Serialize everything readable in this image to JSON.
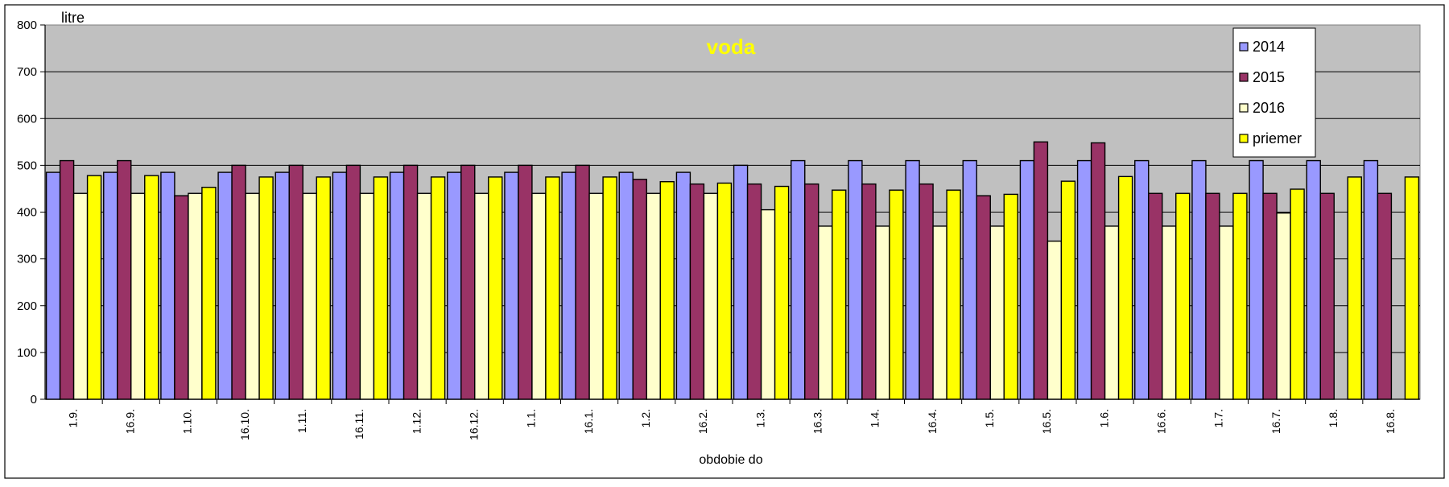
{
  "chart_data": {
    "type": "bar",
    "title": "voda",
    "ylabel": "litre",
    "xlabel": "obdobie do",
    "ylim": [
      0,
      800
    ],
    "yticks": [
      0,
      100,
      200,
      300,
      400,
      500,
      600,
      700,
      800
    ],
    "grid": true,
    "legend_position": "top-right",
    "categories": [
      "1.9.",
      "16.9.",
      "1.10.",
      "16.10.",
      "1.11.",
      "16.11.",
      "1.12.",
      "16.12.",
      "1.1.",
      "16.1.",
      "1.2.",
      "16.2.",
      "1.3.",
      "16.3.",
      "1.4.",
      "16.4.",
      "1.5.",
      "16.5.",
      "1.6.",
      "16.6.",
      "1.7.",
      "16.7.",
      "1.8.",
      "16.8."
    ],
    "series": [
      {
        "name": "2014",
        "color": "#9999ff",
        "values": [
          485,
          485,
          485,
          485,
          485,
          485,
          485,
          485,
          485,
          485,
          485,
          485,
          500,
          510,
          510,
          510,
          510,
          510,
          510,
          510,
          510,
          510,
          510,
          510
        ]
      },
      {
        "name": "2015",
        "color": "#993366",
        "values": [
          510,
          510,
          435,
          500,
          500,
          500,
          500,
          500,
          500,
          500,
          470,
          460,
          460,
          460,
          460,
          460,
          435,
          550,
          548,
          440,
          440,
          440,
          440,
          440
        ]
      },
      {
        "name": "2016",
        "color": "#ffffcc",
        "values": [
          440,
          440,
          440,
          440,
          440,
          440,
          440,
          440,
          440,
          440,
          440,
          440,
          405,
          370,
          370,
          370,
          370,
          338,
          370,
          370,
          370,
          398,
          null,
          null
        ]
      },
      {
        "name": "priemer",
        "color": "#ffff00",
        "values": [
          478,
          478,
          453,
          475,
          475,
          475,
          475,
          475,
          475,
          475,
          465,
          462,
          455,
          447,
          447,
          447,
          438,
          466,
          476,
          440,
          440,
          449,
          475,
          475
        ]
      }
    ],
    "colors": {
      "plot_bg": "#c0c0c0",
      "title": "#ffff00",
      "gridline": "#000000"
    }
  }
}
